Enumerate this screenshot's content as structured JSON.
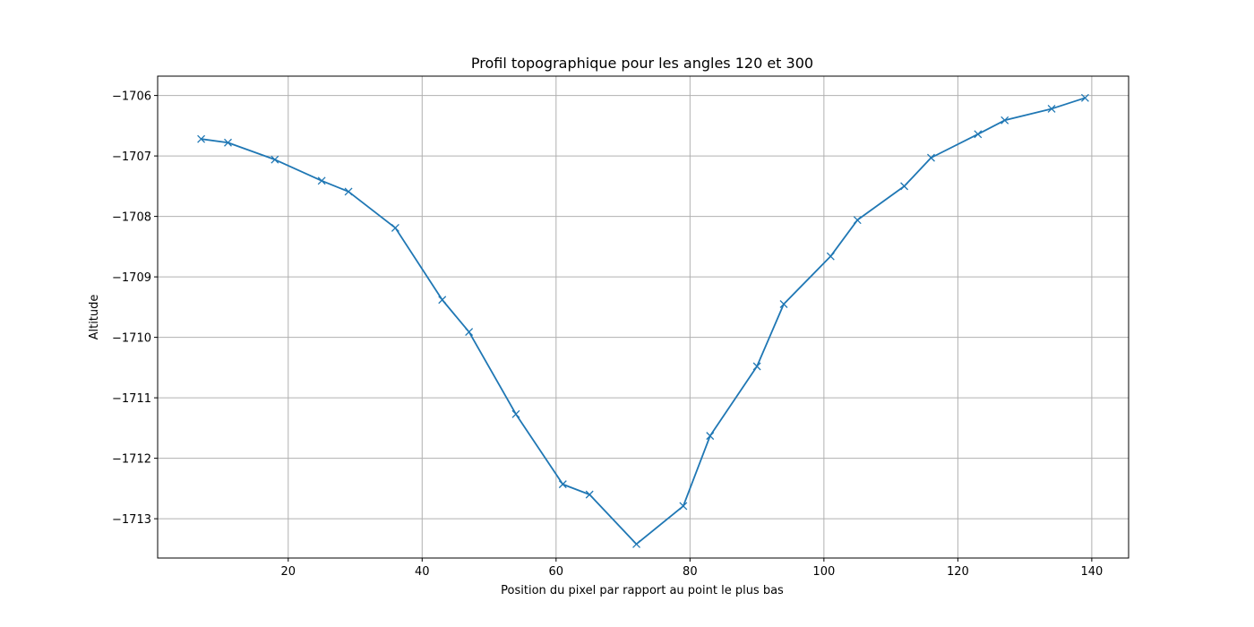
{
  "chart_data": {
    "type": "line",
    "title": "Profil topographique pour les angles 120 et 300",
    "xlabel": "Position du pixel par rapport au point le plus bas",
    "ylabel": "Altitude",
    "xlim": [
      0.5,
      145.5
    ],
    "ylim": [
      -1713.65,
      -1705.68
    ],
    "x_ticks": [
      20,
      40,
      60,
      80,
      100,
      120,
      140
    ],
    "y_ticks": [
      -1713,
      -1712,
      -1711,
      -1710,
      -1709,
      -1708,
      -1707,
      -1706
    ],
    "x_tick_labels": [
      "20",
      "40",
      "60",
      "80",
      "100",
      "120",
      "140"
    ],
    "y_tick_labels": [
      "−1713",
      "−1712",
      "−1711",
      "−1710",
      "−1709",
      "−1708",
      "−1707",
      "−1706"
    ],
    "grid": true,
    "marker": "x",
    "series": [
      {
        "color": "#1f77b4",
        "x": [
          7,
          11,
          18,
          25,
          29,
          36,
          43,
          47,
          54,
          61,
          65,
          72,
          79,
          83,
          90,
          94,
          101,
          105,
          112,
          116,
          123,
          127,
          134,
          139
        ],
        "y": [
          -1706.72,
          -1706.78,
          -1707.06,
          -1707.41,
          -1707.59,
          -1708.19,
          -1709.38,
          -1709.91,
          -1711.27,
          -1712.43,
          -1712.6,
          -1713.42,
          -1712.79,
          -1711.63,
          -1710.48,
          -1709.45,
          -1708.66,
          -1708.06,
          -1707.5,
          -1707.03,
          -1706.64,
          -1706.41,
          -1706.22,
          -1706.04
        ]
      }
    ]
  }
}
